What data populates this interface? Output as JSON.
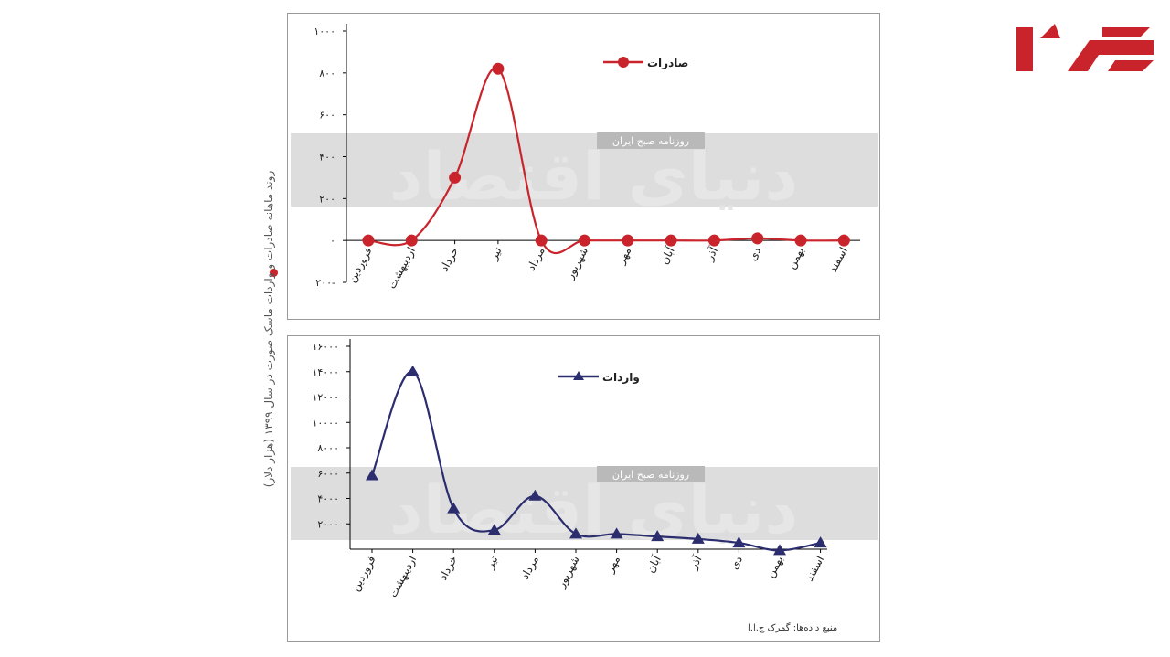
{
  "colors": {
    "exports": "#c9242b",
    "imports": "#2b2d6e",
    "band": "#d4d4d4",
    "axis": "#000000",
    "logo": "#c9242b"
  },
  "side_title": "روند ماهانه صادرات و واردات ماسک صورت در سال ۱۳۹۹ (هزار دلار)",
  "source_note": "منبع داده‌ها: گمرک ج.ا.ا",
  "watermark": {
    "main": "دنیای اقتصاد",
    "tag": "روزنامه صبح ایران"
  },
  "logo_alt": "logo",
  "chart_data": [
    {
      "type": "line",
      "title": "",
      "legend": "صادرات",
      "legend_position": "top-right",
      "grid": false,
      "marker": "circle",
      "categories": [
        "فروردین",
        "اردیبهشت",
        "خرداد",
        "تیر",
        "مرداد",
        "شهریور",
        "مهر",
        "آبان",
        "آذر",
        "دی",
        "بهمن",
        "اسفند"
      ],
      "values": [
        0,
        0,
        300,
        820,
        0,
        0,
        0,
        0,
        0,
        10,
        0,
        0
      ],
      "ylim": [
        -200,
        1000
      ],
      "yticks": [
        -200,
        0,
        200,
        400,
        600,
        800,
        1000
      ],
      "ytick_labels": [
        "۲۰۰-",
        "۰",
        "۲۰۰",
        "۴۰۰",
        "۶۰۰",
        "۸۰۰",
        "۱۰۰۰"
      ]
    },
    {
      "type": "line",
      "title": "",
      "legend": "واردات",
      "legend_position": "top-right",
      "grid": false,
      "marker": "triangle",
      "categories": [
        "فروردین",
        "اردیبهشت",
        "خرداد",
        "تیر",
        "مرداد",
        "شهریور",
        "مهر",
        "آبان",
        "آذر",
        "دی",
        "بهمن",
        "اسفند"
      ],
      "values": [
        5800,
        14000,
        3200,
        1500,
        4200,
        1200,
        1200,
        1000,
        800,
        500,
        -100,
        500
      ],
      "ylim": [
        0,
        16000
      ],
      "yticks": [
        2000,
        4000,
        6000,
        8000,
        10000,
        12000,
        14000,
        16000
      ],
      "ytick_labels": [
        "۲۰۰۰",
        "۴۰۰۰",
        "۶۰۰۰",
        "۸۰۰۰",
        "۱۰۰۰۰",
        "۱۲۰۰۰",
        "۱۴۰۰۰",
        "۱۶۰۰۰"
      ]
    }
  ]
}
